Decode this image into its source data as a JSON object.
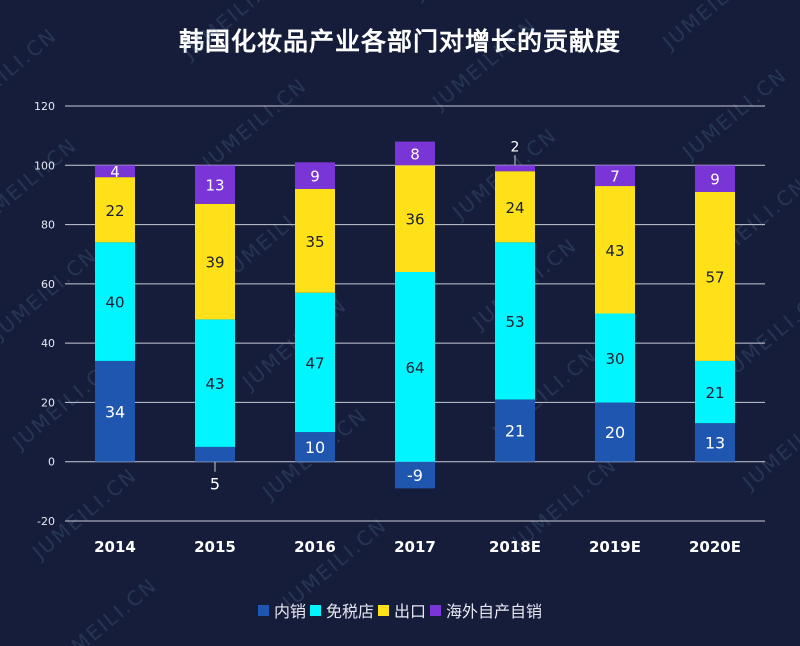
{
  "chart_data": {
    "type": "bar",
    "stacked": true,
    "title": "韩国化妆品产业各部门对增长的贡献度",
    "categories": [
      "2014",
      "2015",
      "2016",
      "2017",
      "2018E",
      "2019E",
      "2020E"
    ],
    "series": [
      {
        "name": "内销",
        "color": "#1e56b0",
        "values": [
          34,
          5,
          10,
          -9,
          21,
          20,
          13
        ]
      },
      {
        "name": "免税店",
        "color": "#00f5ff",
        "values": [
          40,
          43,
          47,
          64,
          53,
          30,
          21
        ]
      },
      {
        "name": "出口",
        "color": "#ffe11a",
        "values": [
          22,
          39,
          35,
          36,
          24,
          43,
          57
        ]
      },
      {
        "name": "海外自产自销",
        "color": "#7a35d6",
        "values": [
          4,
          13,
          9,
          8,
          2,
          7,
          9
        ]
      }
    ],
    "yticks": [
      -20,
      0,
      20,
      40,
      60,
      80,
      100,
      120
    ],
    "ylim": [
      -20,
      120
    ],
    "grid": true,
    "legend_position": "bottom",
    "watermark": "JUMEILI.CN"
  }
}
